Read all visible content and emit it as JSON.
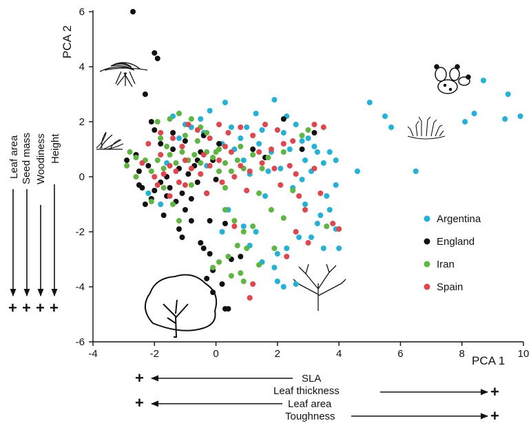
{
  "chart_data": {
    "type": "scatter",
    "title": "",
    "xlabel": "PCA 1",
    "ylabel": "PCA 2",
    "xlim": [
      -4,
      10
    ],
    "ylim": [
      -6,
      6
    ],
    "x_ticks": [
      "-4",
      "-2",
      "0",
      "2",
      "4",
      "6",
      "8",
      "10"
    ],
    "y_ticks": [
      "-6",
      "-4",
      "-2",
      "0",
      "2",
      "4",
      "6"
    ],
    "legend_position": "right",
    "left_traits": [
      "Leaf area",
      "Seed mass",
      "Woodiness",
      "Height"
    ],
    "left_signs": [
      "+",
      "+",
      "+",
      "+"
    ],
    "bottom_traits": {
      "sla": "SLA",
      "leaf_thickness": "Leaf thickness",
      "leaf_area": "Leaf area",
      "toughness": "Toughness",
      "plus": "+"
    },
    "series": [
      {
        "name": "Argentina",
        "color": "#1cb4dc",
        "points": [
          [
            5.0,
            2.7
          ],
          [
            5.5,
            2.2
          ],
          [
            5.7,
            1.8
          ],
          [
            6.5,
            0.2
          ],
          [
            4.6,
            0.2
          ],
          [
            8.1,
            2.0
          ],
          [
            8.7,
            3.5
          ],
          [
            9.4,
            2.1
          ],
          [
            9.5,
            3.0
          ],
          [
            9.9,
            2.2
          ],
          [
            8.4,
            2.3
          ],
          [
            1.9,
            2.8
          ],
          [
            0.3,
            2.7
          ],
          [
            -0.2,
            2.4
          ],
          [
            -1.4,
            2.2
          ],
          [
            -1.0,
            1.9
          ],
          [
            0.5,
            1.8
          ],
          [
            1.0,
            1.8
          ],
          [
            1.5,
            1.7
          ],
          [
            2.2,
            1.6
          ],
          [
            2.6,
            1.9
          ],
          [
            3.0,
            1.4
          ],
          [
            3.2,
            1.1
          ],
          [
            3.3,
            0.9
          ],
          [
            3.7,
            0.9
          ],
          [
            3.5,
            0.5
          ],
          [
            3.9,
            0.6
          ],
          [
            3.1,
            0.2
          ],
          [
            2.8,
            -0.1
          ],
          [
            2.5,
            -0.4
          ],
          [
            3.6,
            -0.7
          ],
          [
            3.9,
            -0.3
          ],
          [
            3.7,
            -1.2
          ],
          [
            3.4,
            -1.4
          ],
          [
            3.9,
            -1.9
          ],
          [
            3.1,
            -2.2
          ],
          [
            4.0,
            -2.6
          ],
          [
            3.5,
            -2.6
          ],
          [
            2.7,
            -2.2
          ],
          [
            2.3,
            -2.6
          ],
          [
            2.0,
            -2.8
          ],
          [
            1.9,
            -3.3
          ],
          [
            1.5,
            -3.1
          ],
          [
            1.1,
            -2.5
          ],
          [
            1.3,
            -2.0
          ],
          [
            0.9,
            -1.8
          ],
          [
            0.4,
            -1.2
          ],
          [
            0.2,
            -2.0
          ],
          [
            2.0,
            -3.8
          ],
          [
            2.6,
            -3.9
          ],
          [
            2.2,
            -4.0
          ],
          [
            1.6,
            -0.7
          ],
          [
            1.1,
            0.1
          ],
          [
            0.9,
            0.6
          ],
          [
            0.6,
            1.0
          ],
          [
            0.2,
            1.2
          ],
          [
            -0.4,
            1.6
          ],
          [
            -0.8,
            1.8
          ],
          [
            -1.2,
            1.4
          ],
          [
            -1.6,
            0.5
          ],
          [
            -0.3,
            0.4
          ],
          [
            1.8,
            0.9
          ],
          [
            2.4,
            1.0
          ],
          [
            2.9,
            0.6
          ],
          [
            1.4,
            1.2
          ],
          [
            0.8,
            1.4
          ],
          [
            2.1,
            0.3
          ],
          [
            2.9,
            -1.0
          ],
          [
            3.3,
            -1.7
          ],
          [
            -0.5,
            2.1
          ],
          [
            1.3,
            2.3
          ],
          [
            2.3,
            2.2
          ],
          [
            2.8,
            1.3
          ],
          [
            -1.8,
            -1.0
          ],
          [
            -2.2,
            -0.6
          ],
          [
            1.7,
            0.2
          ]
        ]
      },
      {
        "name": "England",
        "color": "#111111",
        "points": [
          [
            -2.7,
            6.0
          ],
          [
            -2.0,
            4.5
          ],
          [
            -1.9,
            4.3
          ],
          [
            -2.3,
            3.0
          ],
          [
            -2.0,
            1.7
          ],
          [
            -2.6,
            0.8
          ],
          [
            -2.9,
            0.6
          ],
          [
            -2.5,
            0.2
          ],
          [
            -2.4,
            -0.4
          ],
          [
            -2.1,
            -0.8
          ],
          [
            -2.3,
            -1.0
          ],
          [
            -2.0,
            -0.5
          ],
          [
            -1.8,
            -0.2
          ],
          [
            -1.6,
            -0.7
          ],
          [
            -1.5,
            -0.4
          ],
          [
            -1.3,
            -0.9
          ],
          [
            -1.1,
            -0.6
          ],
          [
            -1.0,
            -1.2
          ],
          [
            -0.8,
            -0.8
          ],
          [
            -1.6,
            0.0
          ],
          [
            -1.2,
            0.3
          ],
          [
            -0.9,
            0.1
          ],
          [
            -0.7,
            0.4
          ],
          [
            -0.6,
            -0.2
          ],
          [
            -1.4,
            1.0
          ],
          [
            -1.8,
            1.2
          ],
          [
            -1.0,
            1.3
          ],
          [
            -0.5,
            0.9
          ],
          [
            -0.1,
            0.6
          ],
          [
            -0.3,
            -0.6
          ],
          [
            -0.2,
            -1.6
          ],
          [
            -1.2,
            -1.9
          ],
          [
            -1.1,
            -2.2
          ],
          [
            -0.5,
            -2.4
          ],
          [
            -0.4,
            -2.6
          ],
          [
            -0.2,
            -2.8
          ],
          [
            -0.3,
            -3.7
          ],
          [
            -0.1,
            -3.4
          ],
          [
            0.2,
            -3.9
          ],
          [
            0.4,
            -4.8
          ],
          [
            0.3,
            -4.8
          ],
          [
            -0.1,
            -4.2
          ],
          [
            0.5,
            -3.0
          ],
          [
            0.8,
            -2.9
          ],
          [
            0.3,
            -1.7
          ],
          [
            1.2,
            1.0
          ],
          [
            1.6,
            0.7
          ],
          [
            2.2,
            2.1
          ],
          [
            2.8,
            1.0
          ],
          [
            3.2,
            1.6
          ],
          [
            -0.4,
            1.5
          ],
          [
            -2.2,
            0.4
          ],
          [
            -2.5,
            -0.3
          ],
          [
            -1.7,
            -1.4
          ],
          [
            -0.8,
            -1.6
          ],
          [
            0.0,
            -0.1
          ],
          [
            -2.1,
            2.0
          ],
          [
            -1.4,
            1.6
          ],
          [
            0.1,
            1.2
          ],
          [
            -0.6,
            0.6
          ]
        ]
      },
      {
        "name": "Iran",
        "color": "#5ab83c",
        "points": [
          [
            -1.9,
            2.0
          ],
          [
            -1.5,
            2.1
          ],
          [
            -1.2,
            2.3
          ],
          [
            -0.8,
            2.1
          ],
          [
            -0.5,
            1.8
          ],
          [
            -2.8,
            0.9
          ],
          [
            -2.9,
            0.4
          ],
          [
            -2.6,
            0.7
          ],
          [
            -2.3,
            0.6
          ],
          [
            -2.1,
            0.2
          ],
          [
            -1.9,
            0.6
          ],
          [
            -1.7,
            0.3
          ],
          [
            -1.5,
            0.8
          ],
          [
            -1.3,
            0.5
          ],
          [
            -1.1,
            0.9
          ],
          [
            -0.9,
            0.6
          ],
          [
            -0.7,
            0.8
          ],
          [
            -0.5,
            0.5
          ],
          [
            -0.3,
            0.9
          ],
          [
            -0.1,
            0.7
          ],
          [
            0.1,
            1.0
          ],
          [
            0.3,
            0.5
          ],
          [
            0.5,
            0.2
          ],
          [
            0.7,
            0.6
          ],
          [
            0.9,
            0.3
          ],
          [
            1.2,
            0.8
          ],
          [
            1.5,
            0.3
          ],
          [
            -2.1,
            -0.9
          ],
          [
            -1.7,
            -0.4
          ],
          [
            -1.4,
            -1.0
          ],
          [
            -1.2,
            -1.6
          ],
          [
            -0.8,
            -0.3
          ],
          [
            0.3,
            -1.2
          ],
          [
            0.6,
            -1.6
          ],
          [
            0.9,
            -2.0
          ],
          [
            0.7,
            -2.5
          ],
          [
            1.0,
            -2.6
          ],
          [
            0.4,
            -2.9
          ],
          [
            0.1,
            -3.1
          ],
          [
            -0.1,
            -3.3
          ],
          [
            0.5,
            -3.6
          ],
          [
            0.9,
            -3.8
          ],
          [
            0.8,
            -3.5
          ],
          [
            1.4,
            -3.2
          ],
          [
            1.2,
            -1.8
          ],
          [
            1.8,
            -1.2
          ],
          [
            2.2,
            -1.5
          ],
          [
            1.7,
            0.7
          ],
          [
            2.2,
            0.9
          ],
          [
            2.8,
            1.5
          ],
          [
            3.0,
            1.7
          ],
          [
            -2.6,
            0.0
          ],
          [
            -0.6,
            1.3
          ],
          [
            0.1,
            0.2
          ],
          [
            0.8,
            1.1
          ],
          [
            -1.0,
            1.5
          ],
          [
            -1.8,
            1.4
          ],
          [
            0.3,
            -0.4
          ],
          [
            1.4,
            -0.6
          ],
          [
            2.5,
            -0.5
          ],
          [
            3.6,
            -1.8
          ],
          [
            -0.3,
            1.6
          ],
          [
            0.0,
            0.9
          ],
          [
            -1.6,
            1.1
          ],
          [
            1.9,
            -2.6
          ]
        ]
      },
      {
        "name": "Spain",
        "color": "#e8434a",
        "points": [
          [
            -1.8,
            1.6
          ],
          [
            -1.4,
            1.4
          ],
          [
            -1.1,
            1.1
          ],
          [
            -0.6,
            1.7
          ],
          [
            -0.2,
            1.4
          ],
          [
            0.1,
            1.9
          ],
          [
            0.4,
            1.6
          ],
          [
            0.8,
            1.8
          ],
          [
            1.2,
            1.5
          ],
          [
            1.6,
            1.9
          ],
          [
            2.0,
            1.7
          ],
          [
            2.5,
            1.3
          ],
          [
            3.2,
            1.9
          ],
          [
            3.5,
            1.8
          ],
          [
            -2.4,
            0.5
          ],
          [
            -2.0,
            0.0
          ],
          [
            -1.8,
            0.8
          ],
          [
            -1.5,
            0.4
          ],
          [
            -1.3,
            0.2
          ],
          [
            -1.0,
            0.6
          ],
          [
            -0.8,
            0.3
          ],
          [
            -0.5,
            0.1
          ],
          [
            -0.2,
            0.4
          ],
          [
            0.1,
            0.6
          ],
          [
            0.5,
            0.9
          ],
          [
            0.8,
            0.4
          ],
          [
            1.1,
            0.2
          ],
          [
            1.5,
            0.5
          ],
          [
            1.9,
            0.3
          ],
          [
            2.4,
            0.4
          ],
          [
            2.1,
            -0.3
          ],
          [
            2.7,
            -0.7
          ],
          [
            3.2,
            0.3
          ],
          [
            3.4,
            -0.6
          ],
          [
            3.8,
            -1.7
          ],
          [
            4.0,
            -1.9
          ],
          [
            3.0,
            -2.4
          ],
          [
            2.6,
            -2.0
          ],
          [
            2.3,
            -2.9
          ],
          [
            1.2,
            -3.9
          ],
          [
            1.1,
            -4.4
          ],
          [
            0.6,
            -1.8
          ],
          [
            -0.3,
            -0.6
          ],
          [
            -1.0,
            -0.3
          ],
          [
            -1.5,
            -0.7
          ],
          [
            -1.9,
            -0.3
          ],
          [
            0.2,
            -0.2
          ],
          [
            0.6,
            0.0
          ],
          [
            1.8,
            1.0
          ],
          [
            2.6,
            0.1
          ],
          [
            -2.2,
            1.2
          ],
          [
            -0.9,
            1.9
          ],
          [
            0.3,
            1.1
          ],
          [
            1.4,
            0.9
          ],
          [
            2.9,
            -1.2
          ],
          [
            -0.4,
            0.8
          ],
          [
            -1.7,
            0.1
          ],
          [
            1.0,
            -0.5
          ],
          [
            2.2,
            1.2
          ],
          [
            -1.2,
            -0.2
          ]
        ]
      }
    ]
  }
}
